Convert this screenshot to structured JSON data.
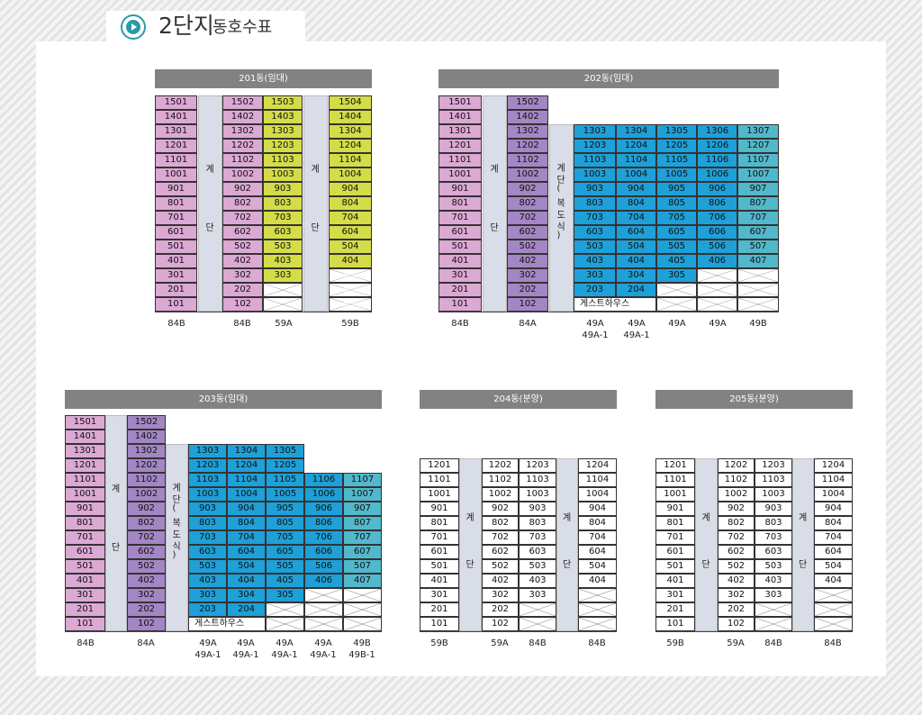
{
  "page": {
    "title_main": "2단지",
    "title_sub": "동호수표"
  },
  "stair": {
    "top": "계",
    "bottom": "단",
    "corridor": [
      "계",
      "단",
      "(",
      "복",
      "도",
      "식",
      ")"
    ]
  },
  "guest": "게스트하우스",
  "b201": {
    "title": "201동(임대)",
    "col1": [
      "1501",
      "1401",
      "1301",
      "1201",
      "1101",
      "1001",
      "901",
      "801",
      "701",
      "601",
      "501",
      "401",
      "301",
      "201",
      "101"
    ],
    "col2": [
      "1502",
      "1402",
      "1302",
      "1202",
      "1102",
      "1002",
      "902",
      "802",
      "702",
      "602",
      "502",
      "402",
      "302",
      "202",
      "102"
    ],
    "col3": [
      "1503",
      "1403",
      "1303",
      "1203",
      "1103",
      "1003",
      "903",
      "803",
      "703",
      "603",
      "503",
      "403",
      "303"
    ],
    "col4": [
      "1504",
      "1404",
      "1304",
      "1204",
      "1104",
      "1004",
      "904",
      "804",
      "704",
      "604",
      "504",
      "404"
    ],
    "labels": [
      [
        "84B"
      ],
      [
        "84B"
      ],
      [
        "59A"
      ],
      [
        "59B"
      ]
    ]
  },
  "b202": {
    "title": "202동(임대)",
    "col1": [
      "1501",
      "1401",
      "1301",
      "1201",
      "1101",
      "1001",
      "901",
      "801",
      "701",
      "601",
      "501",
      "401",
      "301",
      "201",
      "101"
    ],
    "col2": [
      "1502",
      "1402",
      "1302",
      "1202",
      "1102",
      "1002",
      "902",
      "802",
      "702",
      "602",
      "502",
      "402",
      "302",
      "202",
      "102"
    ],
    "c1": [
      "1303",
      "1203",
      "1103",
      "1003",
      "903",
      "803",
      "703",
      "603",
      "503",
      "403",
      "303",
      "203"
    ],
    "c2": [
      "1304",
      "1204",
      "1104",
      "1004",
      "904",
      "804",
      "704",
      "604",
      "504",
      "404",
      "304",
      "204"
    ],
    "c3": [
      "1305",
      "1205",
      "1105",
      "1005",
      "905",
      "805",
      "705",
      "605",
      "505",
      "405",
      "305"
    ],
    "c4": [
      "1306",
      "1206",
      "1106",
      "1006",
      "906",
      "806",
      "706",
      "606",
      "506",
      "406"
    ],
    "c5": [
      "1307",
      "1207",
      "1107",
      "1007",
      "907",
      "807",
      "707",
      "607",
      "507",
      "407"
    ],
    "labels": [
      [
        "84B"
      ],
      [
        "84A"
      ],
      [
        "49A",
        "49A-1"
      ],
      [
        "49A",
        "49A-1"
      ],
      [
        "49A"
      ],
      [
        "49A"
      ],
      [
        "49B"
      ]
    ]
  },
  "b203": {
    "title": "203동(임대)",
    "col1": [
      "1501",
      "1401",
      "1301",
      "1201",
      "1101",
      "1001",
      "901",
      "801",
      "701",
      "601",
      "501",
      "401",
      "301",
      "201",
      "101"
    ],
    "col2": [
      "1502",
      "1402",
      "1302",
      "1202",
      "1102",
      "1002",
      "902",
      "802",
      "702",
      "602",
      "502",
      "402",
      "302",
      "202",
      "102"
    ],
    "c1": [
      "1303",
      "1203",
      "1103",
      "1003",
      "903",
      "803",
      "703",
      "603",
      "503",
      "403",
      "303",
      "203"
    ],
    "c2": [
      "1304",
      "1204",
      "1104",
      "1004",
      "904",
      "804",
      "704",
      "604",
      "504",
      "404",
      "304",
      "204"
    ],
    "c3": [
      "1305",
      "1205",
      "1105",
      "1005",
      "905",
      "805",
      "705",
      "605",
      "505",
      "405",
      "305"
    ],
    "c4": [
      "1106",
      "1006",
      "906",
      "806",
      "706",
      "606",
      "506",
      "406"
    ],
    "c5": [
      "1107",
      "1007",
      "907",
      "807",
      "707",
      "607",
      "507",
      "407"
    ],
    "labels": [
      [
        "84B"
      ],
      [
        "84A"
      ],
      [
        "49A",
        "49A-1"
      ],
      [
        "49A",
        "49A-1"
      ],
      [
        "49A",
        "49A-1"
      ],
      [
        "49A",
        "49A-1"
      ],
      [
        "49B",
        "49B-1"
      ]
    ]
  },
  "b204": {
    "title": "204동(분양)",
    "col1": [
      "1201",
      "1101",
      "1001",
      "901",
      "801",
      "701",
      "601",
      "501",
      "401",
      "301",
      "201",
      "101"
    ],
    "col2": [
      "1202",
      "1102",
      "1002",
      "902",
      "802",
      "702",
      "602",
      "502",
      "402",
      "302",
      "202",
      "102"
    ],
    "col3": [
      "1203",
      "1103",
      "1003",
      "903",
      "803",
      "703",
      "603",
      "503",
      "403",
      "303"
    ],
    "col4": [
      "1204",
      "1104",
      "1004",
      "904",
      "804",
      "704",
      "604",
      "504",
      "404"
    ],
    "labels": [
      [
        "59B"
      ],
      [
        "59A"
      ],
      [
        "84B"
      ],
      [
        "84B"
      ]
    ]
  },
  "b205": {
    "title": "205동(분양)",
    "col1": [
      "1201",
      "1101",
      "1001",
      "901",
      "801",
      "701",
      "601",
      "501",
      "401",
      "301",
      "201",
      "101"
    ],
    "col2": [
      "1202",
      "1102",
      "1002",
      "902",
      "802",
      "702",
      "602",
      "502",
      "402",
      "302",
      "202",
      "102"
    ],
    "col3": [
      "1203",
      "1103",
      "1003",
      "903",
      "803",
      "703",
      "603",
      "503",
      "403",
      "303"
    ],
    "col4": [
      "1204",
      "1104",
      "1004",
      "904",
      "804",
      "704",
      "604",
      "504",
      "404"
    ],
    "labels": [
      [
        "59B"
      ],
      [
        "59A"
      ],
      [
        "84B"
      ],
      [
        "84B"
      ]
    ]
  },
  "colors": {
    "pink": "#dca8d4",
    "purple": "#a386c4",
    "green": "#d4dc48",
    "blue": "#1ea0d8",
    "teal": "#52b8cc",
    "stair": "#d9dde7",
    "bar": "#828282"
  }
}
